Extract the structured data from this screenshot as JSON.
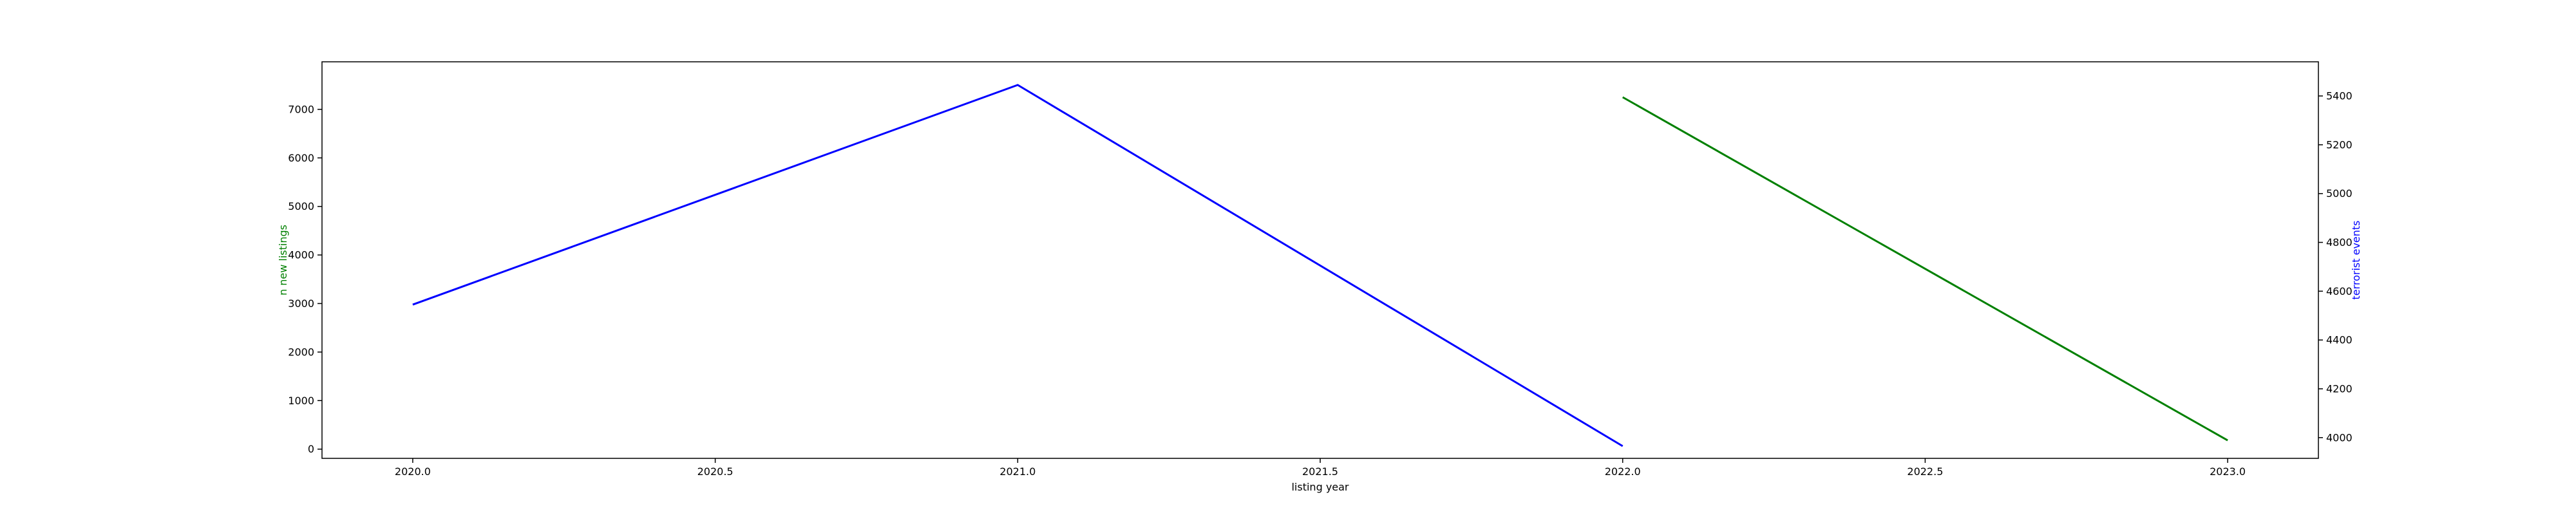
{
  "chart_data": {
    "type": "line",
    "xlabel": "listing year",
    "y_left_label": "n new listings",
    "y_right_label": "terrorist events",
    "x_ticks": [
      "2020.0",
      "2020.5",
      "2021.0",
      "2021.5",
      "2022.0",
      "2022.5",
      "2023.0"
    ],
    "y_left_ticks": [
      "0",
      "1000",
      "2000",
      "3000",
      "4000",
      "5000",
      "6000",
      "7000"
    ],
    "y_right_ticks": [
      "4000",
      "4200",
      "4400",
      "4600",
      "4800",
      "5000",
      "5200",
      "5400"
    ],
    "xlim": [
      2019.85,
      2023.15
    ],
    "y_left_lim": [
      -190,
      7980
    ],
    "y_right_lim": [
      3915,
      5540
    ],
    "grid": false,
    "series": [
      {
        "axis": "left",
        "color": "#008000",
        "x": [
          2022,
          2023
        ],
        "values": [
          7250,
          180
        ]
      },
      {
        "axis": "right",
        "color": "#0000ff",
        "x": [
          2020,
          2021,
          2022
        ],
        "values": [
          4545,
          5445,
          3965
        ]
      }
    ]
  }
}
